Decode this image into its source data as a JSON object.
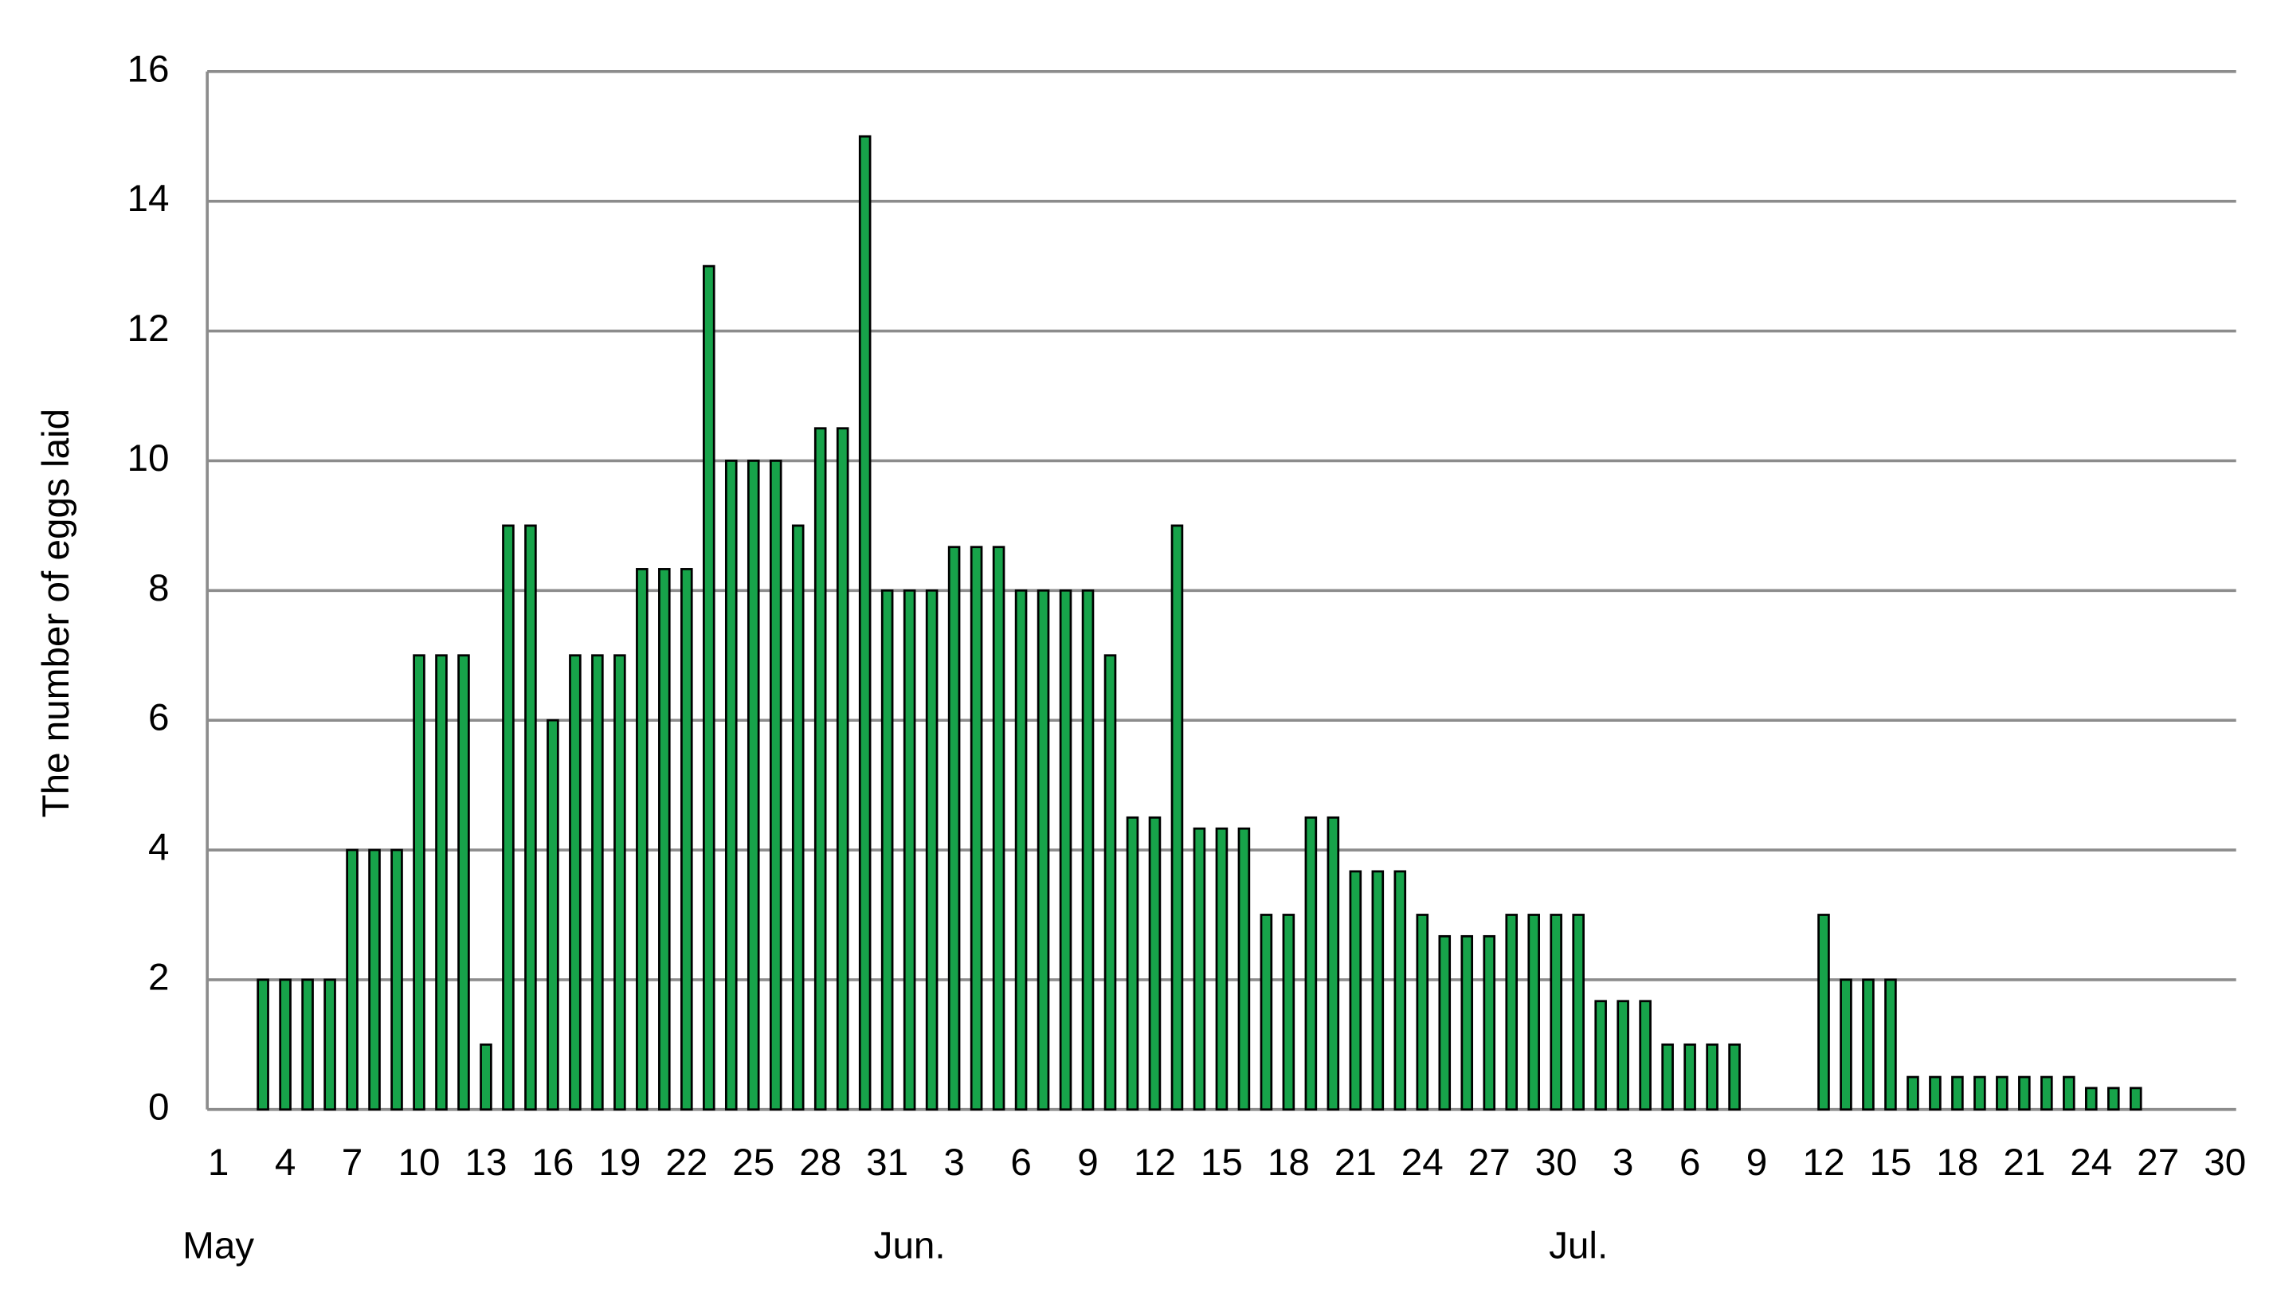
{
  "chart_data": {
    "type": "bar",
    "y_axis_label": "The number of eggs laid",
    "categories": [
      "1",
      null,
      null,
      "4",
      null,
      null,
      "7",
      null,
      null,
      "10",
      null,
      null,
      "13",
      null,
      null,
      "16",
      null,
      null,
      "19",
      null,
      null,
      "22",
      null,
      null,
      "25",
      null,
      null,
      "28",
      null,
      null,
      "31",
      null,
      null,
      "3",
      null,
      null,
      "6",
      null,
      null,
      "9",
      null,
      null,
      "12",
      null,
      null,
      "15",
      null,
      null,
      "18",
      null,
      null,
      "21",
      null,
      null,
      "24",
      null,
      null,
      "27",
      null,
      null,
      "30",
      null,
      null,
      "3",
      null,
      null,
      "6",
      null,
      null,
      "9",
      null,
      null,
      "12",
      null,
      null,
      "15",
      null,
      null,
      "18",
      null,
      null,
      "21",
      null,
      null,
      "24",
      null,
      null,
      "27",
      null,
      null,
      "30"
    ],
    "month_labels": [
      "May",
      "Jun.",
      "Jul."
    ],
    "values": [
      null,
      null,
      2,
      2,
      2,
      2,
      4,
      4,
      4,
      7,
      7,
      7,
      1,
      9,
      9,
      6,
      7,
      7,
      7,
      8.33,
      8.33,
      8.33,
      13,
      10,
      10,
      10,
      9,
      10.5,
      10.5,
      15,
      8,
      8,
      8,
      8.67,
      8.67,
      8.67,
      8,
      8,
      8,
      8,
      7,
      4.5,
      4.5,
      9,
      4.33,
      4.33,
      4.33,
      3,
      3,
      4.5,
      4.5,
      3.67,
      3.67,
      3.67,
      3,
      2.67,
      2.67,
      2.67,
      3,
      3,
      3,
      3,
      1.67,
      1.67,
      1.67,
      1,
      1,
      1,
      1,
      null,
      null,
      null,
      3,
      2,
      2,
      2,
      0.5,
      0.5,
      0.5,
      0.5,
      0.5,
      0.5,
      0.5,
      0.5,
      0.33,
      0.33,
      0.33,
      null,
      null,
      null,
      null
    ],
    "color": "#17a34a",
    "ylim": [
      0,
      16
    ],
    "yticks": [
      0,
      2,
      4,
      6,
      8,
      10,
      12,
      14,
      16
    ],
    "grid": true
  }
}
